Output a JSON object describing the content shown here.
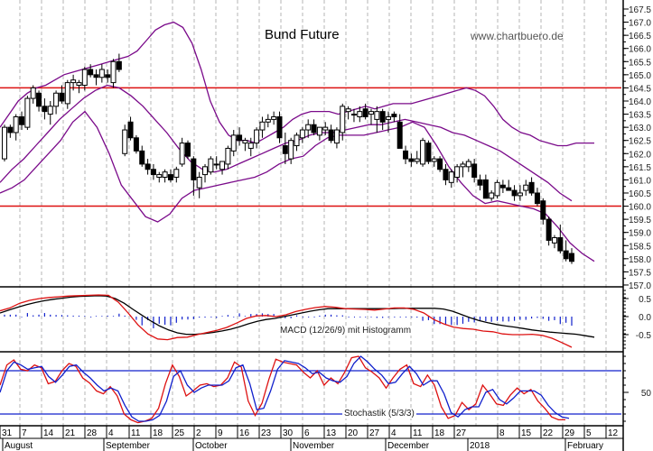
{
  "header": {
    "title": "Bund Future",
    "watermark": "www.chartbuero.de"
  },
  "colors": {
    "candle": "#000000",
    "bollinger": "#7a0a8a",
    "support_resistance": "#dd1111",
    "macd_line": "#000000",
    "macd_signal": "#dd1111",
    "macd_histogram": "#1020cc",
    "stoch_k": "#dd1111",
    "stoch_d": "#1020cc",
    "stoch_bounds": "#1020cc",
    "grid": "#b4b4b4"
  },
  "indicators": {
    "macd_label": "MACD (12/26/9) mit Histogramm",
    "stoch_label": "Stochastik (5/3/3)"
  },
  "chart_data": {
    "type": "candlestick",
    "title": "Bund Future",
    "xlabel": "",
    "ylabel": "",
    "price_axis": {
      "ticks": [
        "167.5",
        "167.0",
        "166.5",
        "166.0",
        "165.5",
        "165.0",
        "164.5",
        "164.0",
        "163.5",
        "163.0",
        "162.5",
        "162.0",
        "161.5",
        "161.0",
        "160.5",
        "160.0",
        "159.5",
        "159.0",
        "158.5",
        "158.0",
        "157.5",
        "157.0"
      ],
      "ylim": [
        157.0,
        167.5
      ]
    },
    "macd_axis": {
      "ticks": [
        "0.5",
        "0.0",
        "-0.5"
      ]
    },
    "stoch_axis": {
      "ticks": [
        "50"
      ],
      "upper_bound": 80,
      "lower_bound": 20
    },
    "x_axis": {
      "day_ticks": [
        "31",
        "7",
        "14",
        "21",
        "28",
        "4",
        "11",
        "18",
        "25",
        "2",
        "9",
        "16",
        "23",
        "30",
        "6",
        "13",
        "20",
        "27",
        "4",
        "11",
        "18",
        "27",
        "8",
        "15",
        "22",
        "29",
        "5",
        "12"
      ],
      "month_labels": [
        "August",
        "September",
        "October",
        "November",
        "December",
        "2018",
        "February"
      ]
    },
    "horizontal_lines": [
      {
        "label": "resistance",
        "value": 164.5
      },
      {
        "label": "support",
        "value": 160.0
      }
    ],
    "candles": [
      [
        161.8,
        163.1,
        161.7,
        163.0
      ],
      [
        163.0,
        163.1,
        162.6,
        162.8
      ],
      [
        162.8,
        163.5,
        162.5,
        163.4
      ],
      [
        163.4,
        163.6,
        162.9,
        163.1
      ],
      [
        163.0,
        164.2,
        162.9,
        164.1
      ],
      [
        164.1,
        164.6,
        163.9,
        164.5
      ],
      [
        164.3,
        164.4,
        163.6,
        163.8
      ],
      [
        163.8,
        164.1,
        163.3,
        163.6
      ],
      [
        163.5,
        164.0,
        163.1,
        163.8
      ],
      [
        163.8,
        164.4,
        163.5,
        164.3
      ],
      [
        164.3,
        164.6,
        163.9,
        164.0
      ],
      [
        163.9,
        164.8,
        163.7,
        164.7
      ],
      [
        164.7,
        165.0,
        164.4,
        164.8
      ],
      [
        164.6,
        164.8,
        164.3,
        164.7
      ],
      [
        164.6,
        165.3,
        164.4,
        165.2
      ],
      [
        165.2,
        165.4,
        164.9,
        165.0
      ],
      [
        165.0,
        165.2,
        164.6,
        164.9
      ],
      [
        164.9,
        165.4,
        164.7,
        165.2
      ],
      [
        165.0,
        165.2,
        164.7,
        164.9
      ],
      [
        164.7,
        165.6,
        164.5,
        165.5
      ],
      [
        165.5,
        165.8,
        165.1,
        165.2
      ],
      [
        162.0,
        163.1,
        161.9,
        162.9
      ],
      [
        163.2,
        163.4,
        162.5,
        162.6
      ],
      [
        162.6,
        162.7,
        162.0,
        162.1
      ],
      [
        162.1,
        162.3,
        161.5,
        161.6
      ],
      [
        161.6,
        161.8,
        161.2,
        161.4
      ],
      [
        161.4,
        161.6,
        161.0,
        161.2
      ],
      [
        161.1,
        161.3,
        160.9,
        161.2
      ],
      [
        161.1,
        161.4,
        160.9,
        161.3
      ],
      [
        161.2,
        161.4,
        160.9,
        161.0
      ],
      [
        161.1,
        161.5,
        160.9,
        161.4
      ],
      [
        161.6,
        162.6,
        161.5,
        162.4
      ],
      [
        162.4,
        162.5,
        161.8,
        161.9
      ],
      [
        161.8,
        161.9,
        160.4,
        161.0
      ],
      [
        160.7,
        161.3,
        160.3,
        161.1
      ],
      [
        161.2,
        161.6,
        160.9,
        161.5
      ],
      [
        161.3,
        161.9,
        161.2,
        161.8
      ],
      [
        161.6,
        161.9,
        161.4,
        161.6
      ],
      [
        161.4,
        161.7,
        161.2,
        161.7
      ],
      [
        161.6,
        162.3,
        161.4,
        162.2
      ],
      [
        162.1,
        162.9,
        161.9,
        162.7
      ],
      [
        162.7,
        163.0,
        162.3,
        162.5
      ],
      [
        162.4,
        162.6,
        162.1,
        162.5
      ],
      [
        162.2,
        162.6,
        161.9,
        162.4
      ],
      [
        162.4,
        163.0,
        162.2,
        162.9
      ],
      [
        162.9,
        163.4,
        162.6,
        163.2
      ],
      [
        163.2,
        163.5,
        163.0,
        163.3
      ],
      [
        163.3,
        163.6,
        163.1,
        163.4
      ],
      [
        163.4,
        163.6,
        162.4,
        162.6
      ],
      [
        162.3,
        162.8,
        161.6,
        162.0
      ],
      [
        161.8,
        162.6,
        161.6,
        162.5
      ],
      [
        162.3,
        162.8,
        162.1,
        162.7
      ],
      [
        162.6,
        163.0,
        162.4,
        162.9
      ],
      [
        162.9,
        163.3,
        162.6,
        163.1
      ],
      [
        163.1,
        163.3,
        162.7,
        162.8
      ],
      [
        162.7,
        163.0,
        162.5,
        163.0
      ],
      [
        162.9,
        163.2,
        162.7,
        163.0
      ],
      [
        162.9,
        163.1,
        162.4,
        162.5
      ],
      [
        162.4,
        163.0,
        162.2,
        162.9
      ],
      [
        162.8,
        163.9,
        162.5,
        163.8
      ],
      [
        163.6,
        163.8,
        163.3,
        163.7
      ],
      [
        163.5,
        163.7,
        163.2,
        163.5
      ],
      [
        163.4,
        163.8,
        163.2,
        163.6
      ],
      [
        163.7,
        163.9,
        163.3,
        163.4
      ],
      [
        163.5,
        163.7,
        163.1,
        163.6
      ],
      [
        163.3,
        163.8,
        162.8,
        163.6
      ],
      [
        163.6,
        163.7,
        162.9,
        163.2
      ],
      [
        163.3,
        163.6,
        162.8,
        163.4
      ],
      [
        163.5,
        163.6,
        163.2,
        163.4
      ],
      [
        163.2,
        163.5,
        162.3,
        162.2
      ],
      [
        162.1,
        162.3,
        161.6,
        161.8
      ],
      [
        161.8,
        162.0,
        161.5,
        161.7
      ],
      [
        161.7,
        162.1,
        161.6,
        161.8
      ],
      [
        161.6,
        162.6,
        161.5,
        162.5
      ],
      [
        162.4,
        162.5,
        161.6,
        161.7
      ],
      [
        161.7,
        161.9,
        161.5,
        161.8
      ],
      [
        161.8,
        161.9,
        161.3,
        161.4
      ],
      [
        161.4,
        161.6,
        160.8,
        161.0
      ],
      [
        160.9,
        161.4,
        160.7,
        161.3
      ],
      [
        161.1,
        161.6,
        160.9,
        161.5
      ],
      [
        161.5,
        161.7,
        161.1,
        161.6
      ],
      [
        161.5,
        161.8,
        161.3,
        161.7
      ],
      [
        161.6,
        161.8,
        160.9,
        161.1
      ],
      [
        161.0,
        161.2,
        160.6,
        160.8
      ],
      [
        161.0,
        161.2,
        160.3,
        160.3
      ],
      [
        160.3,
        160.6,
        160.2,
        160.5
      ],
      [
        160.4,
        161.0,
        160.3,
        160.9
      ],
      [
        160.8,
        161.0,
        160.5,
        160.7
      ],
      [
        160.7,
        161.0,
        160.6,
        160.6
      ],
      [
        160.6,
        160.8,
        160.2,
        160.4
      ],
      [
        160.4,
        160.8,
        160.2,
        160.5
      ],
      [
        160.6,
        161.0,
        160.4,
        160.8
      ],
      [
        160.9,
        161.1,
        160.4,
        160.5
      ],
      [
        160.5,
        160.7,
        160.0,
        160.1
      ],
      [
        160.2,
        160.3,
        159.3,
        159.5
      ],
      [
        159.5,
        159.6,
        158.5,
        158.7
      ],
      [
        158.6,
        158.9,
        158.4,
        158.8
      ],
      [
        158.8,
        159.3,
        158.2,
        158.3
      ],
      [
        158.3,
        158.7,
        157.9,
        158.0
      ],
      [
        158.2,
        158.4,
        157.8,
        157.9
      ]
    ],
    "bollinger": {
      "upper": [
        163.0,
        163.5,
        164.0,
        164.3,
        164.5,
        164.6,
        164.8,
        165.0,
        165.1,
        165.2,
        165.3,
        165.4,
        165.5,
        165.6,
        165.7,
        165.9,
        166.3,
        166.7,
        166.9,
        167.0,
        166.8,
        166.2,
        165.2,
        164.0,
        163.2,
        162.7,
        162.5,
        162.5,
        162.4,
        162.6,
        162.8,
        163.0,
        163.3,
        163.5,
        163.6,
        163.6,
        163.6,
        163.5,
        163.6,
        163.7,
        163.8,
        163.7,
        163.8,
        163.9,
        163.9,
        163.9,
        164.0,
        164.1,
        164.2,
        164.3,
        164.4,
        164.5,
        164.4,
        164.2,
        163.8,
        163.3,
        163.0,
        162.8,
        162.7,
        162.5,
        162.4,
        162.3,
        162.3,
        162.4,
        162.4,
        162.4
      ],
      "middle": [
        160.9,
        161.4,
        161.8,
        162.3,
        162.8,
        163.3,
        163.7,
        164.1,
        164.4,
        164.6,
        164.5,
        164.2,
        163.8,
        163.3,
        162.8,
        162.2,
        161.7,
        161.4,
        161.3,
        161.4,
        161.6,
        161.8,
        162.0,
        162.2,
        162.4,
        162.5,
        162.7,
        162.8,
        162.8,
        162.9,
        163.0,
        163.1,
        163.1,
        163.2,
        163.3,
        163.2,
        163.1,
        163.0,
        162.8,
        162.7,
        162.5,
        162.3,
        162.1,
        161.8,
        161.5,
        161.2,
        160.9,
        160.5,
        160.2
      ],
      "lower": [
        160.5,
        160.7,
        161.0,
        161.5,
        162.0,
        162.5,
        163.2,
        163.6,
        163.0,
        162.0,
        160.8,
        160.2,
        159.6,
        159.4,
        159.7,
        160.3,
        160.6,
        160.7,
        160.8,
        160.9,
        161.0,
        161.1,
        161.3,
        161.6,
        161.8,
        161.9,
        162.3,
        162.6,
        162.7,
        162.7,
        162.7,
        162.8,
        162.9,
        163.0,
        163.2,
        163.0,
        162.3,
        161.5,
        160.9,
        160.4,
        160.1,
        160.2,
        160.1,
        160.0,
        159.9,
        159.7,
        159.2,
        158.6,
        158.2,
        157.9
      ]
    },
    "macd": {
      "line": [
        0.1,
        0.18,
        0.26,
        0.33,
        0.39,
        0.44,
        0.48,
        0.51,
        0.54,
        0.56,
        0.57,
        0.58,
        0.57,
        0.5,
        0.37,
        0.2,
        0.04,
        -0.12,
        -0.26,
        -0.37,
        -0.45,
        -0.49,
        -0.49,
        -0.47,
        -0.44,
        -0.4,
        -0.35,
        -0.28,
        -0.2,
        -0.13,
        -0.08,
        -0.05,
        0.0,
        0.05,
        0.1,
        0.15,
        0.19,
        0.22,
        0.22,
        0.22,
        0.22,
        0.22,
        0.22,
        0.22,
        0.22,
        0.23,
        0.23,
        0.23,
        0.23,
        0.23,
        0.21,
        0.15,
        0.06,
        -0.03,
        -0.11,
        -0.17,
        -0.22,
        -0.26,
        -0.29,
        -0.33,
        -0.37,
        -0.4,
        -0.43,
        -0.45,
        -0.47,
        -0.49,
        -0.53,
        -0.57
      ],
      "signal": [
        0.16,
        0.24,
        0.37,
        0.45,
        0.5,
        0.53,
        0.55,
        0.57,
        0.58,
        0.59,
        0.6,
        0.59,
        0.4,
        0.1,
        -0.23,
        -0.48,
        -0.62,
        -0.64,
        -0.58,
        -0.57,
        -0.5,
        -0.44,
        -0.38,
        -0.3,
        -0.18,
        -0.05,
        0.02,
        0.03,
        0.0,
        0.05,
        0.14,
        0.2,
        0.25,
        0.28,
        0.26,
        0.22,
        0.21,
        0.2,
        0.18,
        0.21,
        0.24,
        0.24,
        0.2,
        0.1,
        -0.08,
        -0.2,
        -0.29,
        -0.33,
        -0.35,
        -0.4,
        -0.42,
        -0.48,
        -0.5,
        -0.5,
        -0.49,
        -0.52,
        -0.6,
        -0.72,
        -0.85
      ]
    },
    "stochastic": {
      "k": [
        60,
        88,
        95,
        82,
        80,
        88,
        84,
        62,
        65,
        80,
        90,
        86,
        70,
        63,
        52,
        48,
        58,
        45,
        20,
        12,
        8,
        10,
        14,
        28,
        62,
        88,
        72,
        45,
        52,
        60,
        62,
        58,
        60,
        70,
        92,
        85,
        38,
        18,
        35,
        68,
        96,
        92,
        90,
        88,
        78,
        70,
        80,
        60,
        70,
        62,
        78,
        98,
        100,
        84,
        78,
        70,
        56,
        70,
        82,
        88,
        62,
        58,
        74,
        60,
        30,
        14,
        18,
        36,
        26,
        34,
        60,
        48,
        34,
        32,
        46,
        56,
        48,
        54,
        38,
        28,
        16,
        12,
        12
      ],
      "d": [
        50,
        80,
        92,
        88,
        82,
        84,
        86,
        72,
        64,
        74,
        86,
        88,
        78,
        70,
        60,
        52,
        56,
        52,
        32,
        16,
        10,
        10,
        12,
        18,
        38,
        72,
        80,
        60,
        50,
        56,
        60,
        60,
        60,
        66,
        84,
        88,
        62,
        26,
        28,
        52,
        82,
        94,
        92,
        90,
        84,
        76,
        78,
        70,
        66,
        64,
        72,
        90,
        100,
        92,
        82,
        74,
        62,
        64,
        76,
        86,
        76,
        60,
        66,
        66,
        48,
        22,
        16,
        26,
        30,
        30,
        50,
        54,
        40,
        34,
        42,
        52,
        52,
        52,
        46,
        32,
        22,
        16,
        14
      ]
    }
  }
}
